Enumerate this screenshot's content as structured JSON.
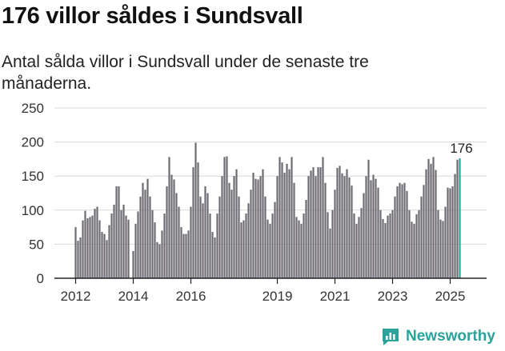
{
  "header": {
    "title": "176 villor såldes i Sundsvall",
    "subtitle": "Antal sålda villor i Sundsvall under de senaste tre månaderna."
  },
  "brand": {
    "name": "Newsworthy",
    "color": "#2aa39a",
    "icon": "bar-chart-logo-icon"
  },
  "colors": {
    "bar": "#6d6c72",
    "highlight": "#2aa39a",
    "grid": "#d8d8d8",
    "axis": "#222222"
  },
  "chart_data": {
    "type": "bar",
    "ylim": [
      0,
      250
    ],
    "yticks": [
      0,
      50,
      100,
      150,
      200,
      250
    ],
    "xticks": [
      {
        "label": "2012",
        "index": 0
      },
      {
        "label": "2014",
        "index": 24
      },
      {
        "label": "2016",
        "index": 48
      },
      {
        "label": "2019",
        "index": 84
      },
      {
        "label": "2021",
        "index": 108
      },
      {
        "label": "2023",
        "index": 132
      },
      {
        "label": "2025",
        "index": 156
      }
    ],
    "highlight_label": "176",
    "values": [
      75,
      55,
      60,
      85,
      99,
      88,
      90,
      92,
      102,
      105,
      85,
      68,
      65,
      56,
      78,
      95,
      108,
      135,
      135,
      100,
      108,
      92,
      86,
      0,
      40,
      80,
      98,
      120,
      140,
      130,
      146,
      120,
      100,
      82,
      53,
      50,
      70,
      95,
      135,
      178,
      152,
      145,
      125,
      105,
      75,
      65,
      65,
      70,
      105,
      163,
      199,
      170,
      120,
      110,
      135,
      125,
      95,
      68,
      60,
      95,
      120,
      150,
      178,
      179,
      140,
      130,
      150,
      160,
      120,
      82,
      85,
      95,
      110,
      130,
      155,
      146,
      145,
      150,
      160,
      120,
      86,
      80,
      95,
      112,
      150,
      178,
      170,
      155,
      168,
      160,
      178,
      140,
      90,
      85,
      80,
      95,
      115,
      150,
      158,
      163,
      150,
      163,
      163,
      178,
      140,
      97,
      73,
      100,
      130,
      162,
      165,
      154,
      150,
      160,
      148,
      136,
      95,
      80,
      90,
      103,
      125,
      150,
      174,
      144,
      152,
      146,
      133,
      100,
      87,
      81,
      92,
      95,
      100,
      120,
      135,
      140,
      138,
      140,
      128,
      100,
      83,
      80,
      94,
      100,
      120,
      137,
      160,
      175,
      168,
      178,
      159,
      100,
      86,
      84,
      105,
      133,
      132,
      135,
      153,
      174,
      176
    ]
  }
}
